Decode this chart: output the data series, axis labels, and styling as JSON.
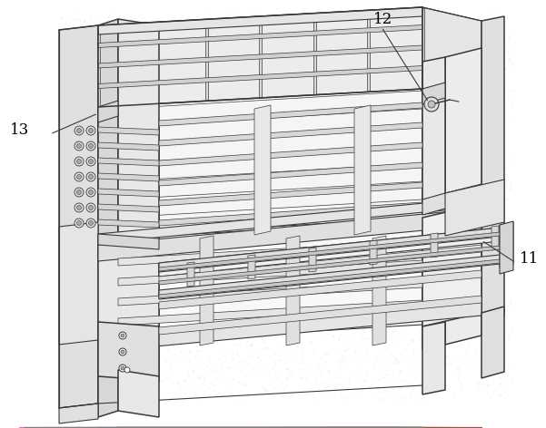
{
  "background_color": "#ffffff",
  "line_color": "#3a3a3a",
  "fill_top": "#efefef",
  "fill_left": "#e0e0e0",
  "fill_right": "#f5f5f5",
  "fill_white": "#ffffff",
  "stipple_color": "#cccccc",
  "label_12": "12",
  "label_13": "13",
  "label_11": "11",
  "label_fontsize": 12,
  "figsize": [
    6.01,
    4.72
  ],
  "dpi": 100
}
